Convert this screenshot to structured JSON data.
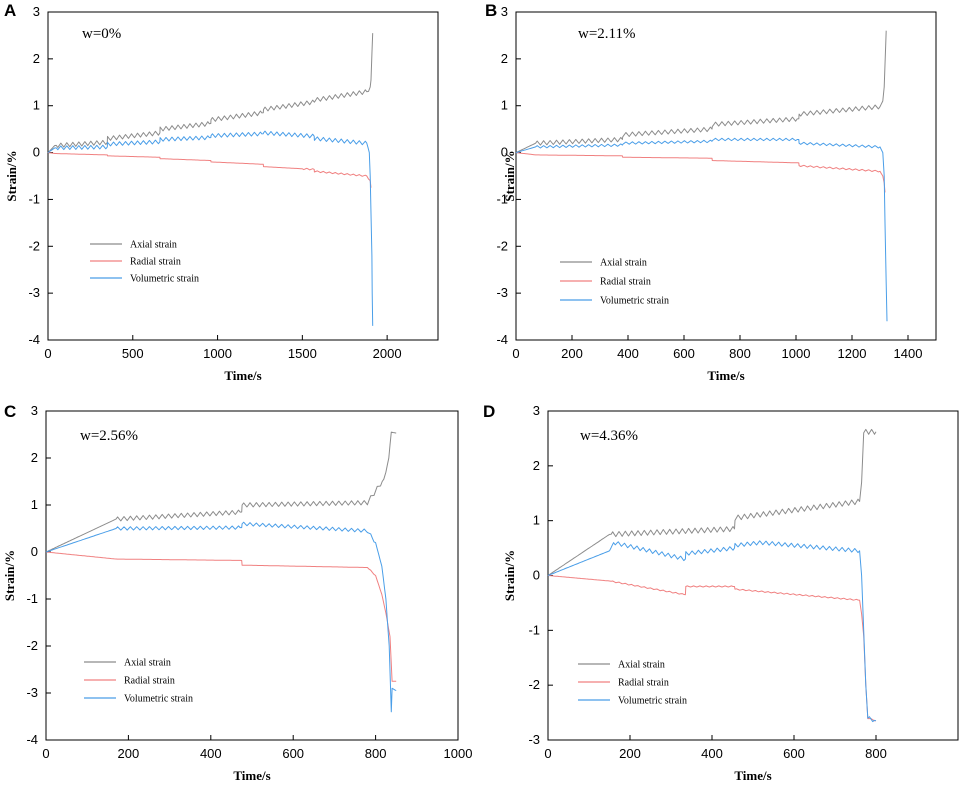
{
  "chart_data": [
    {
      "panel": "A",
      "type": "line",
      "annotation": "w=0%",
      "xlabel": "Time/s",
      "ylabel": "Strain/%",
      "xlim": [
        0,
        2300
      ],
      "ylim": [
        -4,
        3
      ],
      "xticks": [
        0,
        500,
        1000,
        1500,
        2000
      ],
      "yticks": [
        -4,
        -3,
        -2,
        -1,
        0,
        1,
        2,
        3
      ],
      "series": [
        {
          "name": "Axial strain",
          "color": "#8c8c8c",
          "oscillation": 0.09,
          "oscillate_after": 40,
          "x": [
            0,
            40,
            350,
            351,
            660,
            661,
            960,
            961,
            1270,
            1271,
            1570,
            1571,
            1880,
            1900,
            1905,
            1910,
            1915
          ],
          "y": [
            0,
            0.15,
            0.22,
            0.3,
            0.42,
            0.5,
            0.62,
            0.7,
            0.85,
            0.92,
            1.08,
            1.12,
            1.3,
            1.4,
            1.55,
            2.1,
            2.55
          ]
        },
        {
          "name": "Radial strain",
          "color": "#f08080",
          "oscillation": 0.03,
          "oscillate_after": 1500,
          "x": [
            0,
            40,
            350,
            351,
            660,
            661,
            960,
            961,
            1270,
            1271,
            1570,
            1571,
            1880,
            1900,
            1905
          ],
          "y": [
            0,
            -0.02,
            -0.05,
            -0.07,
            -0.1,
            -0.13,
            -0.17,
            -0.2,
            -0.25,
            -0.3,
            -0.36,
            -0.4,
            -0.5,
            -0.6,
            -0.75
          ]
        },
        {
          "name": "Volumetric strain",
          "color": "#4a9ee8",
          "oscillation": 0.08,
          "oscillate_after": 40,
          "x": [
            0,
            40,
            350,
            351,
            660,
            661,
            960,
            961,
            1270,
            1271,
            1570,
            1571,
            1880,
            1895,
            1900,
            1905,
            1910,
            1912,
            1915
          ],
          "y": [
            0,
            0.1,
            0.12,
            0.18,
            0.23,
            0.28,
            0.32,
            0.36,
            0.4,
            0.42,
            0.35,
            0.3,
            0.2,
            0.0,
            -0.5,
            -1.3,
            -2.2,
            -3.0,
            -3.7
          ]
        }
      ]
    },
    {
      "panel": "B",
      "type": "line",
      "annotation": "w=2.11%",
      "xlabel": "Time/s",
      "ylabel": "Strain/%",
      "xlim": [
        0,
        1500
      ],
      "ylim": [
        -4,
        3
      ],
      "xticks": [
        0,
        200,
        400,
        600,
        800,
        1000,
        1200,
        1400
      ],
      "yticks": [
        -4,
        -3,
        -2,
        -1,
        0,
        1,
        2,
        3
      ],
      "series": [
        {
          "name": "Axial strain",
          "color": "#8c8c8c",
          "oscillation": 0.09,
          "oscillate_after": 70,
          "x": [
            0,
            70,
            380,
            381,
            700,
            701,
            1010,
            1011,
            1300,
            1310,
            1315,
            1322
          ],
          "y": [
            0,
            0.2,
            0.28,
            0.38,
            0.5,
            0.6,
            0.72,
            0.82,
            0.98,
            1.1,
            1.4,
            2.6
          ]
        },
        {
          "name": "Radial strain",
          "color": "#f08080",
          "oscillation": 0.03,
          "oscillate_after": 1010,
          "x": [
            0,
            70,
            380,
            381,
            700,
            701,
            1010,
            1011,
            1300,
            1310,
            1315,
            1318
          ],
          "y": [
            0,
            -0.05,
            -0.07,
            -0.1,
            -0.12,
            -0.17,
            -0.22,
            -0.28,
            -0.4,
            -0.5,
            -0.65,
            -0.85
          ]
        },
        {
          "name": "Volumetric strain",
          "color": "#4a9ee8",
          "oscillation": 0.05,
          "oscillate_after": 70,
          "x": [
            0,
            70,
            380,
            381,
            700,
            701,
            1010,
            1011,
            1300,
            1310,
            1315,
            1318,
            1322,
            1325
          ],
          "y": [
            0,
            0.12,
            0.16,
            0.2,
            0.24,
            0.28,
            0.28,
            0.2,
            0.12,
            0.0,
            -0.5,
            -1.5,
            -2.8,
            -3.6
          ]
        }
      ]
    },
    {
      "panel": "C",
      "type": "line",
      "annotation": "w=2.56%",
      "xlabel": "Time/s",
      "ylabel": "Strain/%",
      "xlim": [
        0,
        1000
      ],
      "ylim": [
        -4,
        3
      ],
      "xticks": [
        0,
        200,
        400,
        600,
        800,
        1000
      ],
      "yticks": [
        -4,
        -3,
        -2,
        -1,
        0,
        1,
        2,
        3
      ],
      "series": [
        {
          "name": "Axial strain",
          "color": "#8c8c8c",
          "oscillation": 0.09,
          "oscillate_after": 170,
          "x": [
            0,
            170,
            475,
            476,
            780,
            800,
            820,
            825,
            832,
            838,
            850
          ],
          "y": [
            0,
            0.7,
            0.85,
            1.0,
            1.05,
            1.3,
            1.55,
            1.7,
            2.0,
            2.55,
            2.53
          ]
        },
        {
          "name": "Radial strain",
          "color": "#f08080",
          "oscillation": 0.02,
          "oscillate_after": 780,
          "x": [
            0,
            170,
            475,
            476,
            780,
            800,
            815,
            825,
            835,
            840,
            850
          ],
          "y": [
            0,
            -0.15,
            -0.18,
            -0.28,
            -0.33,
            -0.5,
            -0.9,
            -1.3,
            -1.8,
            -2.75,
            -2.75
          ]
        },
        {
          "name": "Volumetric strain",
          "color": "#4a9ee8",
          "oscillation": 0.07,
          "oscillate_after": 170,
          "x": [
            0,
            170,
            475,
            476,
            780,
            800,
            815,
            825,
            833,
            838,
            840,
            850
          ],
          "y": [
            0,
            0.5,
            0.52,
            0.6,
            0.45,
            0.2,
            -0.3,
            -1.0,
            -2.0,
            -3.4,
            -2.9,
            -2.95
          ]
        }
      ]
    },
    {
      "panel": "D",
      "type": "line",
      "annotation": "w=4.36%",
      "xlabel": "Time/s",
      "ylabel": "Strain/%",
      "xlim": [
        0,
        1000
      ],
      "ylim": [
        -3,
        3
      ],
      "xticks": [
        0,
        200,
        400,
        600,
        800
      ],
      "yticks": [
        -3,
        -2,
        -1,
        0,
        1,
        2,
        3
      ],
      "series": [
        {
          "name": "Axial strain",
          "color": "#8c8c8c",
          "oscillation": 0.09,
          "oscillate_after": 150,
          "x": [
            0,
            150,
            455,
            456,
            760,
            765,
            770,
            775,
            800
          ],
          "y": [
            0,
            0.75,
            0.85,
            1.05,
            1.35,
            1.7,
            2.6,
            2.62,
            2.62
          ]
        },
        {
          "name": "Radial strain",
          "color": "#f08080",
          "oscillation": 0.02,
          "oscillate_after": 150,
          "x": [
            0,
            150,
            335,
            336,
            455,
            456,
            760,
            765,
            770,
            775,
            780,
            800
          ],
          "y": [
            0,
            -0.1,
            -0.35,
            -0.2,
            -0.2,
            -0.25,
            -0.45,
            -0.7,
            -1.1,
            -2.0,
            -2.6,
            -2.65
          ]
        },
        {
          "name": "Volumetric strain",
          "color": "#4a9ee8",
          "oscillation": 0.07,
          "oscillate_after": 150,
          "x": [
            0,
            150,
            160,
            335,
            336,
            455,
            456,
            520,
            760,
            765,
            770,
            775,
            780,
            800
          ],
          "y": [
            0,
            0.45,
            0.6,
            0.3,
            0.4,
            0.5,
            0.55,
            0.6,
            0.45,
            0.0,
            -1.0,
            -2.0,
            -2.6,
            -2.65
          ]
        }
      ]
    }
  ]
}
